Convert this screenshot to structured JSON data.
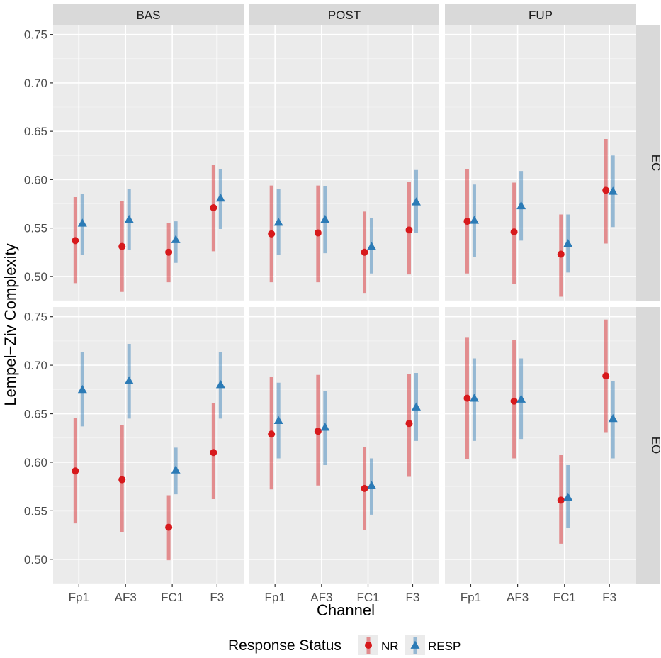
{
  "chart_data": {
    "type": "scatter",
    "subtype": "point-range faceted",
    "xlabel": "Channel",
    "ylabel": "Lempel−Ziv Complexity",
    "ylim": [
      0.475,
      0.76
    ],
    "y_ticks": [
      "0.50",
      "0.55",
      "0.60",
      "0.65",
      "0.70",
      "0.75"
    ],
    "categories": [
      "Fp1",
      "AF3",
      "FC1",
      "F3"
    ],
    "col_facets": [
      "BAS",
      "POST",
      "FUP"
    ],
    "row_facets": [
      "EC",
      "EO"
    ],
    "legend": {
      "title": "Response Status",
      "position": "bottom",
      "entries": [
        {
          "name": "NR",
          "color": "#d7191c",
          "shape": "circle"
        },
        {
          "name": "RESP",
          "color": "#2c7bb6",
          "shape": "triangle"
        }
      ]
    },
    "grid": true,
    "panels": [
      {
        "row": "EC",
        "col": "BAS",
        "NR": [
          {
            "y": 0.537,
            "lo": 0.493,
            "hi": 0.582
          },
          {
            "y": 0.531,
            "lo": 0.484,
            "hi": 0.578
          },
          {
            "y": 0.525,
            "lo": 0.494,
            "hi": 0.555
          },
          {
            "y": 0.571,
            "lo": 0.526,
            "hi": 0.615
          }
        ],
        "RESP": [
          {
            "y": 0.555,
            "lo": 0.522,
            "hi": 0.585
          },
          {
            "y": 0.559,
            "lo": 0.527,
            "hi": 0.59
          },
          {
            "y": 0.538,
            "lo": 0.514,
            "hi": 0.557
          },
          {
            "y": 0.581,
            "lo": 0.549,
            "hi": 0.611
          }
        ]
      },
      {
        "row": "EC",
        "col": "POST",
        "NR": [
          {
            "y": 0.544,
            "lo": 0.494,
            "hi": 0.594
          },
          {
            "y": 0.545,
            "lo": 0.494,
            "hi": 0.594
          },
          {
            "y": 0.525,
            "lo": 0.483,
            "hi": 0.567
          },
          {
            "y": 0.548,
            "lo": 0.502,
            "hi": 0.598
          }
        ],
        "RESP": [
          {
            "y": 0.556,
            "lo": 0.522,
            "hi": 0.59
          },
          {
            "y": 0.559,
            "lo": 0.524,
            "hi": 0.593
          },
          {
            "y": 0.531,
            "lo": 0.503,
            "hi": 0.56
          },
          {
            "y": 0.577,
            "lo": 0.545,
            "hi": 0.61
          }
        ]
      },
      {
        "row": "EC",
        "col": "FUP",
        "NR": [
          {
            "y": 0.557,
            "lo": 0.503,
            "hi": 0.611
          },
          {
            "y": 0.546,
            "lo": 0.492,
            "hi": 0.597
          },
          {
            "y": 0.523,
            "lo": 0.479,
            "hi": 0.564
          },
          {
            "y": 0.589,
            "lo": 0.534,
            "hi": 0.642
          }
        ],
        "RESP": [
          {
            "y": 0.558,
            "lo": 0.52,
            "hi": 0.595
          },
          {
            "y": 0.573,
            "lo": 0.537,
            "hi": 0.609
          },
          {
            "y": 0.534,
            "lo": 0.504,
            "hi": 0.564
          },
          {
            "y": 0.588,
            "lo": 0.551,
            "hi": 0.625
          }
        ]
      },
      {
        "row": "EO",
        "col": "BAS",
        "NR": [
          {
            "y": 0.591,
            "lo": 0.537,
            "hi": 0.646
          },
          {
            "y": 0.582,
            "lo": 0.528,
            "hi": 0.638
          },
          {
            "y": 0.533,
            "lo": 0.499,
            "hi": 0.566
          },
          {
            "y": 0.61,
            "lo": 0.562,
            "hi": 0.661
          }
        ],
        "RESP": [
          {
            "y": 0.675,
            "lo": 0.637,
            "hi": 0.714
          },
          {
            "y": 0.684,
            "lo": 0.645,
            "hi": 0.722
          },
          {
            "y": 0.592,
            "lo": 0.567,
            "hi": 0.615
          },
          {
            "y": 0.68,
            "lo": 0.645,
            "hi": 0.714
          }
        ]
      },
      {
        "row": "EO",
        "col": "POST",
        "NR": [
          {
            "y": 0.629,
            "lo": 0.572,
            "hi": 0.688
          },
          {
            "y": 0.632,
            "lo": 0.576,
            "hi": 0.69
          },
          {
            "y": 0.573,
            "lo": 0.53,
            "hi": 0.616
          },
          {
            "y": 0.64,
            "lo": 0.585,
            "hi": 0.691
          }
        ],
        "RESP": [
          {
            "y": 0.643,
            "lo": 0.604,
            "hi": 0.682
          },
          {
            "y": 0.636,
            "lo": 0.597,
            "hi": 0.673
          },
          {
            "y": 0.576,
            "lo": 0.546,
            "hi": 0.604
          },
          {
            "y": 0.657,
            "lo": 0.622,
            "hi": 0.692
          }
        ]
      },
      {
        "row": "EO",
        "col": "FUP",
        "NR": [
          {
            "y": 0.666,
            "lo": 0.603,
            "hi": 0.729
          },
          {
            "y": 0.663,
            "lo": 0.604,
            "hi": 0.726
          },
          {
            "y": 0.561,
            "lo": 0.516,
            "hi": 0.608
          },
          {
            "y": 0.689,
            "lo": 0.631,
            "hi": 0.747
          }
        ],
        "RESP": [
          {
            "y": 0.666,
            "lo": 0.622,
            "hi": 0.707
          },
          {
            "y": 0.665,
            "lo": 0.624,
            "hi": 0.707
          },
          {
            "y": 0.564,
            "lo": 0.532,
            "hi": 0.597
          },
          {
            "y": 0.645,
            "lo": 0.604,
            "hi": 0.684
          }
        ]
      }
    ]
  }
}
